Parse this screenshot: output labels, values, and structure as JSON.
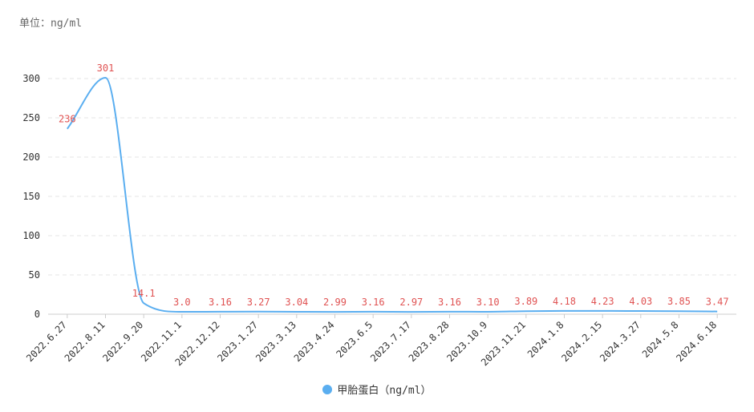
{
  "unit_label": "单位：ng/ml",
  "colors": {
    "series": "#5aaef0",
    "data_label": "#e05252",
    "axis_text": "#333333",
    "grid": "#e6e6e6",
    "axis_line": "#cccccc"
  },
  "chart_data": {
    "type": "line",
    "categories": [
      "2022.6.27",
      "2022.8.11",
      "2022.9.20",
      "2022.11.1",
      "2022.12.12",
      "2023.1.27",
      "2023.3.13",
      "2023.4.24",
      "2023.6.5",
      "2023.7.17",
      "2023.8.28",
      "2023.10.9",
      "2023.11.21",
      "2024.1.8",
      "2024.2.15",
      "2024.3.27",
      "2024.5.8",
      "2024.6.18"
    ],
    "series": [
      {
        "name": "甲胎蛋白（ng/ml）",
        "values": [
          236,
          301,
          14.1,
          3.0,
          3.16,
          3.27,
          3.04,
          2.99,
          3.16,
          2.97,
          3.16,
          3.1,
          3.89,
          4.18,
          4.23,
          4.03,
          3.85,
          3.47
        ],
        "labels": [
          "236",
          "301",
          "14.1",
          "3.0",
          "3.16",
          "3.27",
          "3.04",
          "2.99",
          "3.16",
          "2.97",
          "3.16",
          "3.10",
          "3.89",
          "4.18",
          "4.23",
          "4.03",
          "3.85",
          "3.47"
        ]
      }
    ],
    "yticks": [
      0,
      50,
      100,
      150,
      200,
      250,
      300
    ],
    "ylim": [
      0,
      320
    ],
    "grid": true,
    "legend_position": "bottom-center",
    "smooth": true
  }
}
